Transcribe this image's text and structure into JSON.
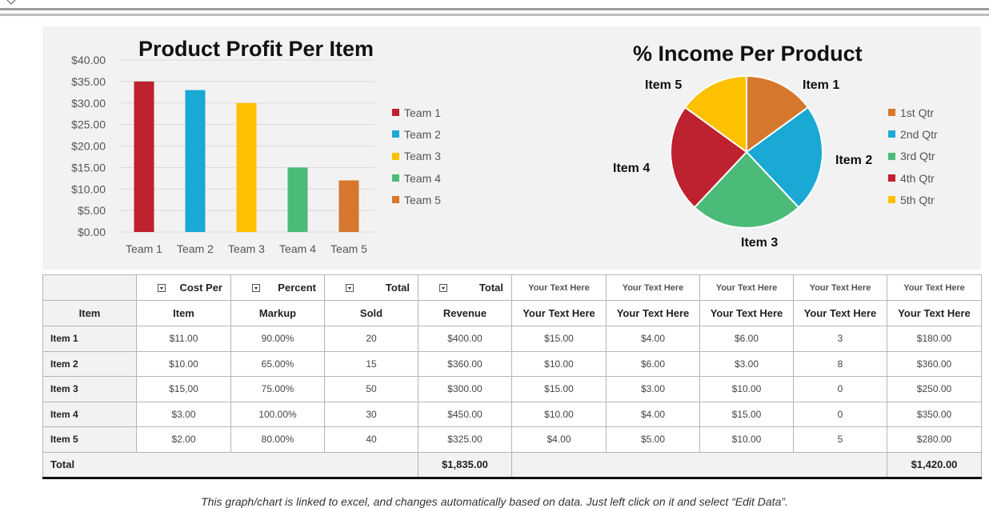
{
  "colors": {
    "team1": "#be2130",
    "team2": "#1aa9d5",
    "team3": "#fdc101",
    "team4": "#4cbb7a",
    "team5": "#d5782e",
    "panel": "#f2f2f2"
  },
  "chart_data": [
    {
      "type": "bar",
      "title": "Product Profit Per Item",
      "categories": [
        "Team 1",
        "Team 2",
        "Team 3",
        "Team 4",
        "Team 5"
      ],
      "values": [
        35,
        33,
        30,
        15,
        12
      ],
      "bar_colors": [
        "#be2130",
        "#1aa9d5",
        "#fdc101",
        "#4cbb7a",
        "#d5782e"
      ],
      "ylim": [
        0,
        40
      ],
      "yticks": [
        "$0.00",
        "$5.00",
        "$10.00",
        "$15.00",
        "$20.00",
        "$25.00",
        "$30.00",
        "$35.00",
        "$40.00"
      ],
      "legend": [
        "Team 1",
        "Team 2",
        "Team 3",
        "Team 4",
        "Team 5"
      ],
      "legend_position": "right",
      "grid": true
    },
    {
      "type": "pie",
      "title": "% Income Per Product",
      "labels": [
        "Item 1",
        "Item 2",
        "Item 3",
        "Item 4",
        "Item 5"
      ],
      "values": [
        15,
        23,
        24,
        23,
        15
      ],
      "slice_colors": [
        "#d5782e",
        "#1aa9d5",
        "#4cbb7a",
        "#be2130",
        "#fdc101"
      ],
      "legend": [
        "1st Qtr",
        "2nd Qtr",
        "3rd Qtr",
        "4th Qtr",
        "5th Qtr"
      ],
      "legend_position": "right"
    }
  ],
  "table": {
    "header1": [
      "Cost Per",
      "Percent",
      "Total",
      "Total",
      "Your Text Here",
      "Your Text Here",
      "Your Text Here",
      "Your Text Here",
      "Your Text Here"
    ],
    "header2": [
      "Item",
      "Item",
      "Markup",
      "Sold",
      "Revenue",
      "Your Text Here",
      "Your Text Here",
      "Your Text Here",
      "Your Text Here",
      "Your Text Here"
    ],
    "rows": [
      [
        "Item 1",
        "$11.00",
        "90.00%",
        "20",
        "$400.00",
        "$15.00",
        "$4.00",
        "$6.00",
        "3",
        "$180.00"
      ],
      [
        "Item 2",
        "$10.00",
        "65.00%",
        "15",
        "$360.00",
        "$10.00",
        "$6.00",
        "$3.00",
        "8",
        "$360.00"
      ],
      [
        "Item 3",
        "$15,00",
        "75.00%",
        "50",
        "$300.00",
        "$15.00",
        "$3.00",
        "$10.00",
        "0",
        "$250.00"
      ],
      [
        "Item 4",
        "$3.00",
        "100.00%",
        "30",
        "$450.00",
        "$10.00",
        "$4.00",
        "$15.00",
        "0",
        "$350.00"
      ],
      [
        "Item 5",
        "$2.00",
        "80.00%",
        "40",
        "$325.00",
        "$4.00",
        "$5.00",
        "$10.00",
        "5",
        "$280.00"
      ]
    ],
    "total_label": "Total",
    "total_revenue": "$1,835.00",
    "total_last": "$1,420.00"
  },
  "footer_note": "This graph/chart is linked to excel, and changes automatically based on data. Just left click on it and select “Edit Data”."
}
